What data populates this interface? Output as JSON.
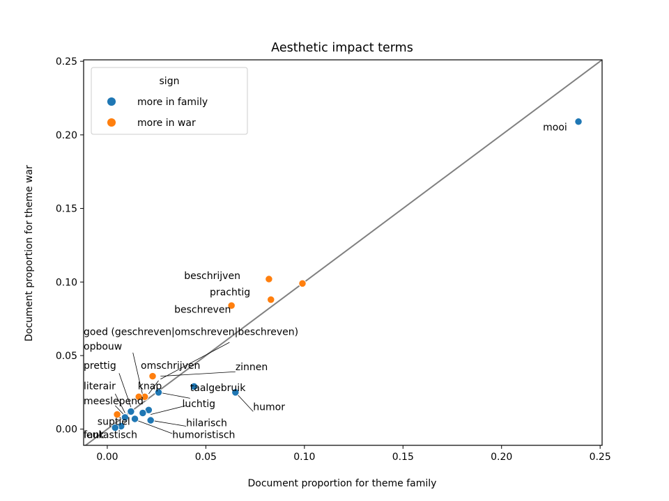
{
  "chart_data": {
    "type": "scatter",
    "title": "Aesthetic impact terms",
    "xlabel": "Document proportion for theme family",
    "ylabel": "Document proportion for theme war",
    "xlim": [
      -0.012,
      0.251
    ],
    "ylim": [
      -0.011,
      0.251
    ],
    "xticks": [
      0.0,
      0.05,
      0.1,
      0.15,
      0.2,
      0.25
    ],
    "xtick_labels": [
      "0.00",
      "0.05",
      "0.10",
      "0.15",
      "0.20",
      "0.25"
    ],
    "yticks": [
      0.0,
      0.05,
      0.1,
      0.15,
      0.2,
      0.25
    ],
    "ytick_labels": [
      "0.00",
      "0.05",
      "0.10",
      "0.15",
      "0.20",
      "0.25"
    ],
    "grid": false,
    "diagonal_line": {
      "from": [
        -0.012,
        -0.012
      ],
      "to": [
        0.251,
        0.251
      ],
      "color": "#808080"
    },
    "legend": {
      "title": "sign",
      "placement": "top-left",
      "entries": [
        {
          "label": "more in family",
          "color": "#1f77b4"
        },
        {
          "label": "more in war",
          "color": "#ff7f0e"
        }
      ]
    },
    "series": [
      {
        "name": "more in family",
        "color": "#1f77b4",
        "points": [
          {
            "x": 0.239,
            "y": 0.209
          },
          {
            "x": 0.065,
            "y": 0.025
          },
          {
            "x": 0.044,
            "y": 0.029
          },
          {
            "x": 0.026,
            "y": 0.025
          },
          {
            "x": 0.022,
            "y": 0.006
          },
          {
            "x": 0.021,
            "y": 0.013
          },
          {
            "x": 0.018,
            "y": 0.011
          },
          {
            "x": 0.014,
            "y": 0.007
          },
          {
            "x": 0.012,
            "y": 0.012
          },
          {
            "x": 0.007,
            "y": 0.002
          },
          {
            "x": 0.004,
            "y": 0.001
          },
          {
            "x": 0.009,
            "y": 0.008
          }
        ]
      },
      {
        "name": "more in war",
        "color": "#ff7f0e",
        "points": [
          {
            "x": 0.099,
            "y": 0.099
          },
          {
            "x": 0.082,
            "y": 0.102
          },
          {
            "x": 0.083,
            "y": 0.088
          },
          {
            "x": 0.063,
            "y": 0.084
          },
          {
            "x": 0.023,
            "y": 0.036
          },
          {
            "x": 0.019,
            "y": 0.022
          },
          {
            "x": 0.016,
            "y": 0.022
          },
          {
            "x": 0.005,
            "y": 0.01
          }
        ]
      }
    ],
    "annotations": [
      {
        "text": "mooi",
        "x": 0.221,
        "y": 0.203
      },
      {
        "text": "beschrijven",
        "x": 0.039,
        "y": 0.102
      },
      {
        "text": "prachtig",
        "x": 0.052,
        "y": 0.091
      },
      {
        "text": "beschreven",
        "x": 0.034,
        "y": 0.079
      },
      {
        "text": "goed (geschreven|omschreven|beschreven)",
        "x": -0.012,
        "y": 0.064
      },
      {
        "text": "opbouw",
        "x": -0.012,
        "y": 0.054
      },
      {
        "text": "omschrijven",
        "x": 0.017,
        "y": 0.041
      },
      {
        "text": "zinnen",
        "x": 0.065,
        "y": 0.04
      },
      {
        "text": "prettig",
        "x": -0.012,
        "y": 0.041
      },
      {
        "text": "knap",
        "x": 0.0155,
        "y": 0.027
      },
      {
        "text": "taalgebruik",
        "x": 0.042,
        "y": 0.026
      },
      {
        "text": "literair",
        "x": -0.012,
        "y": 0.027
      },
      {
        "text": "meeslepend",
        "x": -0.012,
        "y": 0.017
      },
      {
        "text": "luchtig",
        "x": 0.038,
        "y": 0.015
      },
      {
        "text": "humor",
        "x": 0.074,
        "y": 0.013
      },
      {
        "text": "suptiel",
        "x": -0.005,
        "y": 0.003
      },
      {
        "text": "hilarisch",
        "x": 0.04,
        "y": 0.002
      },
      {
        "text": "fantastisch",
        "x": -0.012,
        "y": -0.006
      },
      {
        "text": "leuk",
        "x": -0.012,
        "y": -0.006
      },
      {
        "text": "humoristisch",
        "x": 0.033,
        "y": -0.006
      }
    ],
    "leader_lines": [
      {
        "from": [
          0.027,
          0.034
        ],
        "to": [
          0.062,
          0.059
        ]
      },
      {
        "from": [
          0.013,
          0.052
        ],
        "to": [
          0.018,
          0.023
        ]
      },
      {
        "from": [
          0.026,
          0.033
        ],
        "to": [
          0.021,
          0.024
        ]
      },
      {
        "from": [
          0.027,
          0.036
        ],
        "to": [
          0.065,
          0.039
        ]
      },
      {
        "from": [
          0.006,
          0.038
        ],
        "to": [
          0.012,
          0.015
        ]
      },
      {
        "from": [
          0.019,
          0.022
        ],
        "to": [
          0.015,
          0.019
        ]
      },
      {
        "from": [
          0.042,
          0.021
        ],
        "to": [
          0.026,
          0.025
        ]
      },
      {
        "from": [
          0.004,
          0.024
        ],
        "to": [
          0.009,
          0.011
        ]
      },
      {
        "from": [
          0.04,
          0.016
        ],
        "to": [
          0.022,
          0.01
        ]
      },
      {
        "from": [
          0.065,
          0.025
        ],
        "to": [
          0.074,
          0.012
        ]
      },
      {
        "from": [
          0.004,
          0.016
        ],
        "to": [
          0.009,
          0.009
        ]
      },
      {
        "from": [
          0.04,
          0.002
        ],
        "to": [
          0.022,
          0.006
        ]
      },
      {
        "from": [
          0.033,
          -0.003
        ],
        "to": [
          0.013,
          0.007
        ]
      },
      {
        "from": [
          0.007,
          0.002
        ],
        "to": [
          0.011,
          0.007
        ]
      }
    ]
  }
}
